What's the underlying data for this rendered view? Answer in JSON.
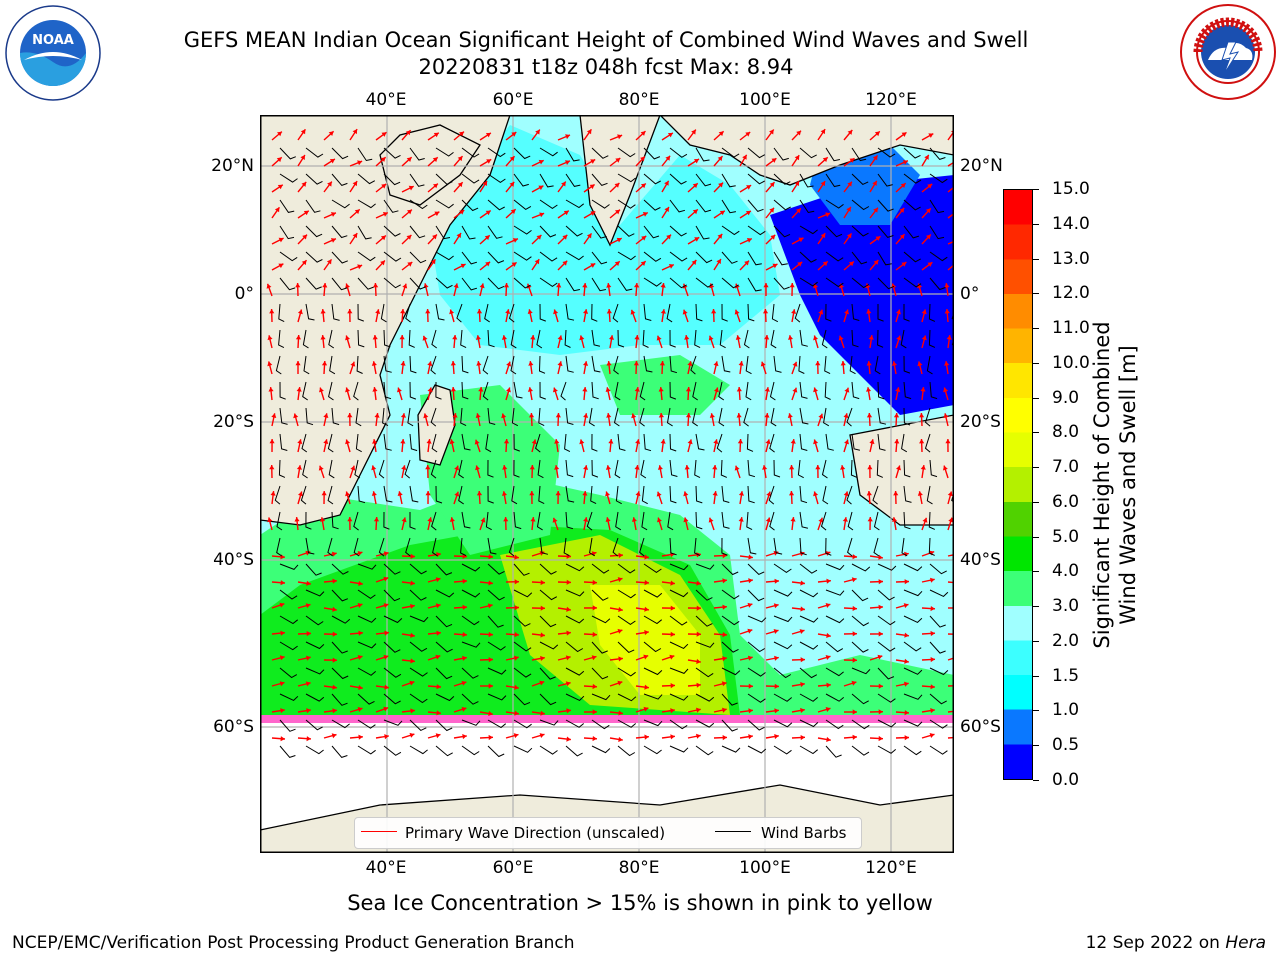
{
  "title": {
    "line1": "GEFS MEAN Indian Ocean Significant Height of Combined Wind Waves and Swell",
    "line2": "20220831 t18z 048h fcst   Max: 8.94"
  },
  "logos": {
    "noaa_text": "NOAA",
    "noaa_ring": "NATIONAL OCEANIC AND ATMOSPHERIC ADMINISTRATION · U.S. DEPARTMENT OF COMMERCE",
    "nws_ring": "NATIONAL WEATHER SERVICE"
  },
  "axes": {
    "lon_ticks": [
      "40°E",
      "60°E",
      "80°E",
      "100°E",
      "120°E"
    ],
    "lat_ticks": [
      "20°N",
      "0°",
      "20°S",
      "40°S",
      "60°S"
    ]
  },
  "colorbar": {
    "label_line1": "Significant Height of Combined",
    "label_line2": "Wind Waves and Swell [m]",
    "ticks": [
      "0.0",
      "0.5",
      "1.0",
      "1.5",
      "2.0",
      "3.0",
      "4.0",
      "5.0",
      "6.0",
      "7.0",
      "8.0",
      "9.0",
      "10.0",
      "11.0",
      "12.0",
      "13.0",
      "14.0",
      "15.0"
    ],
    "colors": [
      "#0000ff",
      "#0a78ff",
      "#00ffff",
      "#3cffff",
      "#a0ffff",
      "#3cff78",
      "#00e600",
      "#50d200",
      "#b4f000",
      "#e6ff00",
      "#ffff00",
      "#ffe600",
      "#ffb400",
      "#ff8c00",
      "#ff5000",
      "#ff2800",
      "#ff0000"
    ]
  },
  "legend": {
    "wave_label": "Primary Wave Direction (unscaled)",
    "wave_color": "#ff0000",
    "wind_label": "Wind Barbs",
    "wind_color": "#000000"
  },
  "caption": "Sea Ice Concentration > 15% is shown in pink to yellow",
  "footer": {
    "left": "NCEP/EMC/Verification Post Processing Product Generation Branch",
    "date": "12 Sep 2022 on ",
    "machine": "Hera"
  },
  "colors": {
    "land": "#efecdc",
    "grid": "#b0b0b0",
    "ice_pink": "#ff66cc"
  }
}
